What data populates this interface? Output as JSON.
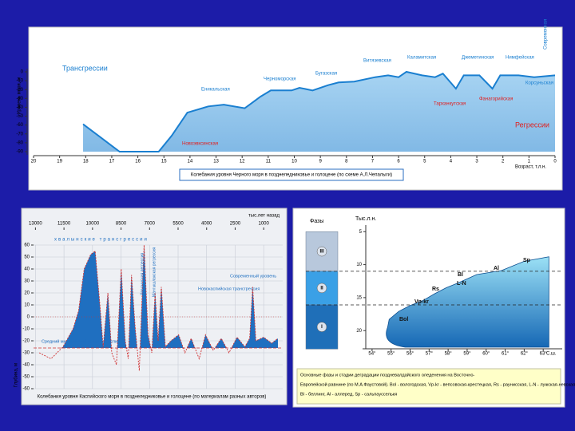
{
  "chart_data": [
    {
      "type": "line",
      "caption": "Колебания уровня Черного моря в позднеледниковье и голоцене (по схеме А.Л.Чепалыги)",
      "xlabel": "Возраст, т.л.н.",
      "ylabel": "Уровень моря, м",
      "x": [
        18.1,
        16.7,
        15.2,
        14.7,
        14.1,
        13.3,
        12.7,
        11.9,
        11.3,
        10.9,
        10.1,
        9.8,
        9.3,
        8.7,
        8.3,
        7.7,
        6.9,
        6.4,
        6.0,
        5.7,
        5.1,
        4.6,
        4.3,
        3.8,
        3.5,
        2.9,
        2.4,
        2.1,
        1.4,
        0.8,
        0
      ],
      "values": [
        -59,
        -90,
        -90,
        -72,
        -46,
        -39,
        -37,
        -41,
        -28,
        -21,
        -21,
        -18,
        -21,
        -15,
        -12,
        -11,
        -6,
        -4,
        -6,
        0,
        -4,
        -6,
        -2,
        -19,
        -4,
        -4,
        -19,
        -4,
        -4,
        -6,
        -4
      ],
      "color": "#1a7fd0",
      "xlim": [
        20,
        0
      ],
      "ylim": [
        -90,
        0
      ],
      "xticks": [
        20,
        19,
        18,
        17,
        16,
        15,
        14,
        13,
        12,
        11,
        10,
        9,
        8,
        7,
        6,
        5,
        4,
        3,
        2,
        1,
        0
      ],
      "yticks": [
        0,
        -10,
        -20,
        -30,
        -40,
        -50,
        -60,
        -70,
        -80,
        -90
      ],
      "annotations": [
        {
          "text": "Трансгрессии",
          "color": "#1a7fd0"
        },
        {
          "text": "Регрессии",
          "color": "#e02020"
        },
        {
          "text": "Новоэвксинская",
          "color": "#e02020"
        },
        {
          "text": "Еникальская",
          "color": "#1a7fd0"
        },
        {
          "text": "Черноморская",
          "color": "#1a7fd0"
        },
        {
          "text": "Бугазская",
          "color": "#1a7fd0"
        },
        {
          "text": "Витязевская",
          "color": "#1a7fd0"
        },
        {
          "text": "Каламитская",
          "color": "#1a7fd0"
        },
        {
          "text": "Джеметинская",
          "color": "#1a7fd0"
        },
        {
          "text": "Нимфейская",
          "color": "#1a7fd0"
        },
        {
          "text": "Корсуньская",
          "color": "#1a7fd0"
        },
        {
          "text": "Фанагорийская",
          "color": "#e02020"
        },
        {
          "text": "Тарханкутская",
          "color": "#e02020"
        },
        {
          "text": "Современная",
          "color": "#1a7fd0"
        }
      ]
    },
    {
      "type": "line",
      "caption": "Колебания уровня Каспийского моря в позднеледниковье и голоцене (по материалам разных авторов)",
      "xlabel": "тыс.лет назад",
      "ylabel": "Глубина, м",
      "x": [
        12800,
        12180,
        11550,
        11020,
        10730,
        10440,
        10100,
        9860,
        9610,
        9440,
        9190,
        8990,
        8740,
        8490,
        8280,
        8120,
        7950,
        7750,
        7540,
        7290,
        7080,
        6880,
        6710,
        6550,
        6380,
        6170,
        5880,
        5470,
        5140,
        4810,
        4390,
        4060,
        3650,
        3230,
        2820,
        2400,
        1990,
        1740,
        1580,
        1410,
        1000,
        580,
        250
      ],
      "values": [
        -30,
        -35,
        -25,
        -10,
        5,
        40,
        52,
        55,
        10,
        -25,
        20,
        -30,
        -40,
        40,
        -20,
        -35,
        35,
        -10,
        -45,
        60,
        -15,
        -30,
        20,
        -20,
        25,
        -25,
        -20,
        -15,
        -30,
        -18,
        -35,
        -15,
        -28,
        -18,
        -30,
        -17,
        -25,
        -18,
        25,
        -20,
        -17,
        -22,
        -18
      ],
      "mean_level": -26,
      "color": "#1f6fc0",
      "line_color": "#d03030",
      "xlim": [
        13100,
        0
      ],
      "ylim": [
        -60,
        60
      ],
      "xticks": [
        13000,
        11500,
        10000,
        8500,
        7000,
        5500,
        4000,
        2500,
        1000
      ],
      "yticks": [
        60,
        50,
        40,
        30,
        20,
        10,
        0,
        -10,
        -20,
        -30,
        -40,
        -50,
        -60
      ],
      "grid": true,
      "annotations": [
        {
          "text": "хвалынские трансгрессии",
          "color": "#1f6fc0"
        },
        {
          "text": "Хвалынская регрессия",
          "color": "#1f6fc0"
        },
        {
          "text": "Мангышлакская регрессия",
          "color": "#1f6fc0"
        },
        {
          "text": "Новокаспийская трансгрессия",
          "color": "#1f6fc0"
        },
        {
          "text": "Современный уровень",
          "color": "#1f6fc0"
        },
        {
          "text": "Средний многолетний уровень Каспия",
          "color": "#1f6fc0"
        }
      ]
    },
    {
      "type": "area",
      "caption": [
        "Основные фазы и стадии деградации поздневалдайского оледенения на Восточно-",
        "Европейской равнине (по М.А.Фаустовой). Bol - вологодская, Vp-kr - вепсовская-крестецкая, Rs - раунисская, L-N - лужская-невская,",
        "Bl - беллинг, Al - аллеред, Sp - сальпаусселькя"
      ],
      "xlabel": "С.ш.",
      "ylabel": "Тыс.л.н.",
      "phase_title": "Фазы",
      "x": [
        54.9,
        55.4,
        56.0,
        56.7,
        57.3,
        57.9,
        58.5,
        59.5,
        60.8,
        62.0,
        63.3
      ],
      "values": [
        18.3,
        17.1,
        16.2,
        15.4,
        14.4,
        13.5,
        12.8,
        11.5,
        10.9,
        9.5,
        8.8
      ],
      "colors": [
        "#9be0f5",
        "#1668b5"
      ],
      "xlim": [
        53.5,
        64
      ],
      "ylim": [
        4,
        23
      ],
      "inverted": true,
      "xticks": [
        {
          "value": 54,
          "label": "54°"
        },
        {
          "value": 55,
          "label": "55°"
        },
        {
          "value": 56,
          "label": "56°"
        },
        {
          "value": 57,
          "label": "57°"
        },
        {
          "value": 58,
          "label": "58°"
        },
        {
          "value": 59,
          "label": "59°"
        },
        {
          "value": 60,
          "label": "60°"
        },
        {
          "value": 61,
          "label": "61°"
        },
        {
          "value": 62,
          "label": "62°"
        },
        {
          "value": 63,
          "label": "63°"
        }
      ],
      "yticks": [
        5,
        10,
        15,
        20
      ],
      "phase_bounds": [
        5,
        11,
        16.1,
        22.8
      ],
      "phases": [
        {
          "label": "III",
          "color": "#b8c8dc"
        },
        {
          "label": "II",
          "color": "#3aa0e6"
        },
        {
          "label": "I",
          "color": "#1f6fb8"
        }
      ],
      "stages": [
        "Sp",
        "Al",
        "Bl",
        "L-N",
        "Rs",
        "Vp-kr",
        "Bol"
      ]
    }
  ]
}
